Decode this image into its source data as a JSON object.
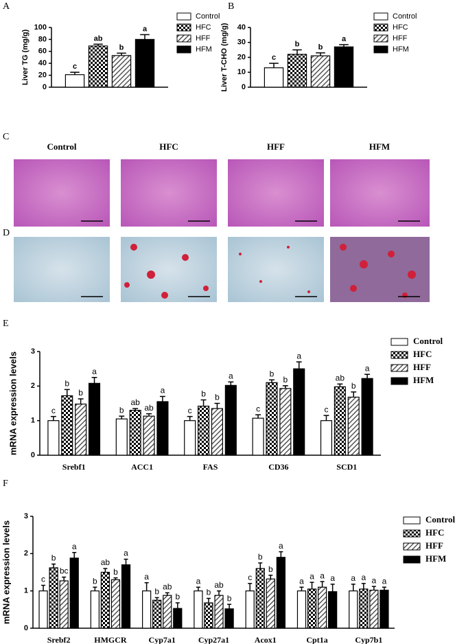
{
  "chart_data": [
    {
      "type": "bar",
      "panel": "A",
      "ylabel": "Liver TG (mg/g)",
      "categories": [
        null
      ],
      "ylim": [
        0,
        100
      ],
      "yticks": [
        0,
        20,
        40,
        60,
        80,
        100
      ],
      "series": [
        {
          "name": "Control",
          "color": "#ffffff",
          "pattern": "none",
          "values": [
            21
          ],
          "errors": [
            4
          ],
          "letters": [
            "c"
          ]
        },
        {
          "name": "HFC",
          "color": "#000000",
          "pattern": "checker",
          "values": [
            69
          ],
          "errors": [
            3
          ],
          "letters": [
            "ab"
          ]
        },
        {
          "name": "HFF",
          "color": "#666666",
          "pattern": "hatch",
          "values": [
            53
          ],
          "errors": [
            4
          ],
          "letters": [
            "b"
          ]
        },
        {
          "name": "HFM",
          "color": "#000000",
          "pattern": "none",
          "values": [
            80
          ],
          "errors": [
            8
          ],
          "letters": [
            "a"
          ]
        }
      ]
    },
    {
      "type": "bar",
      "panel": "B",
      "ylabel": "Liver T-CHO (mg/g)",
      "categories": [
        null
      ],
      "ylim": [
        0,
        40
      ],
      "yticks": [
        0,
        10,
        20,
        30,
        40
      ],
      "series": [
        {
          "name": "Control",
          "color": "#ffffff",
          "pattern": "none",
          "values": [
            13
          ],
          "errors": [
            3
          ],
          "letters": [
            "c"
          ]
        },
        {
          "name": "HFC",
          "color": "#000000",
          "pattern": "checker",
          "values": [
            22
          ],
          "errors": [
            3
          ],
          "letters": [
            "b"
          ]
        },
        {
          "name": "HFF",
          "color": "#666666",
          "pattern": "hatch",
          "values": [
            21
          ],
          "errors": [
            2
          ],
          "letters": [
            "b"
          ]
        },
        {
          "name": "HFM",
          "color": "#000000",
          "pattern": "none",
          "values": [
            27
          ],
          "errors": [
            1.5
          ],
          "letters": [
            "a"
          ]
        }
      ]
    },
    {
      "type": "bar",
      "panel": "E",
      "ylabel": "mRNA expression levels",
      "categories": [
        "Srebf1",
        "ACC1",
        "FAS",
        "CD36",
        "SCD1"
      ],
      "ylim": [
        0,
        3
      ],
      "yticks": [
        0,
        1,
        2,
        3
      ],
      "series": [
        {
          "name": "Control",
          "color": "#ffffff",
          "pattern": "none",
          "values": [
            1.0,
            1.05,
            1.0,
            1.07,
            1.0
          ],
          "errors": [
            0.12,
            0.08,
            0.12,
            0.1,
            0.15
          ],
          "letters": [
            "c",
            "b",
            "c",
            "c",
            "c"
          ]
        },
        {
          "name": "HFC",
          "color": "#000000",
          "pattern": "checker",
          "values": [
            1.72,
            1.3,
            1.42,
            2.1,
            1.98
          ],
          "errors": [
            0.18,
            0.05,
            0.18,
            0.08,
            0.08
          ],
          "letters": [
            "b",
            "ab",
            "b",
            "b",
            "ab"
          ]
        },
        {
          "name": "HFF",
          "color": "#666666",
          "pattern": "hatch",
          "values": [
            1.48,
            1.13,
            1.35,
            1.93,
            1.68
          ],
          "errors": [
            0.15,
            0.07,
            0.15,
            0.08,
            0.15
          ],
          "letters": [
            "b",
            "ab",
            "b",
            "b",
            "b"
          ]
        },
        {
          "name": "HFM",
          "color": "#000000",
          "pattern": "none",
          "values": [
            2.08,
            1.55,
            2.02,
            2.5,
            2.22
          ],
          "errors": [
            0.17,
            0.15,
            0.1,
            0.2,
            0.12
          ],
          "letters": [
            "a",
            "a",
            "a",
            "a",
            "a"
          ]
        }
      ]
    },
    {
      "type": "bar",
      "panel": "F",
      "ylabel": "mRNA expression levels",
      "categories": [
        "Srebf2",
        "HMGCR",
        "Cyp7a1",
        "Cyp27a1",
        "Acox1",
        "Cpt1a",
        "Cyp7b1"
      ],
      "ylim": [
        0,
        3
      ],
      "yticks": [
        0,
        1,
        2,
        3
      ],
      "series": [
        {
          "name": "Control",
          "color": "#ffffff",
          "pattern": "none",
          "values": [
            1.0,
            1.0,
            1.0,
            1.0,
            1.0,
            1.0,
            1.0
          ],
          "errors": [
            0.15,
            0.1,
            0.22,
            0.1,
            0.2,
            0.1,
            0.18
          ],
          "letters": [
            "c",
            "b",
            "a",
            "a",
            "c",
            "a",
            "a"
          ]
        },
        {
          "name": "HFC",
          "color": "#000000",
          "pattern": "checker",
          "values": [
            1.62,
            1.5,
            0.75,
            0.68,
            1.6,
            1.05,
            1.05
          ],
          "errors": [
            0.1,
            0.1,
            0.07,
            0.12,
            0.15,
            0.18,
            0.15
          ],
          "letters": [
            "b",
            "ab",
            "b",
            "b",
            "b",
            "a",
            "a"
          ]
        },
        {
          "name": "HFF",
          "color": "#666666",
          "pattern": "hatch",
          "values": [
            1.27,
            1.3,
            0.88,
            0.88,
            1.32,
            1.1,
            1.02
          ],
          "errors": [
            0.1,
            0.05,
            0.07,
            0.12,
            0.1,
            0.15,
            0.1
          ],
          "letters": [
            "bc",
            "b",
            "ab",
            "ab",
            "b",
            "a",
            "a"
          ]
        },
        {
          "name": "HFM",
          "color": "#000000",
          "pattern": "none",
          "values": [
            1.88,
            1.7,
            0.53,
            0.52,
            1.9,
            0.98,
            1.02
          ],
          "errors": [
            0.15,
            0.15,
            0.15,
            0.12,
            0.15,
            0.2,
            0.08
          ],
          "letters": [
            "a",
            "a",
            "b",
            "b",
            "a",
            "a",
            "a"
          ]
        }
      ]
    }
  ],
  "images": {
    "panels": [
      "C",
      "D"
    ],
    "labels": [
      "Control",
      "HFC",
      "HFF",
      "HFM"
    ]
  }
}
